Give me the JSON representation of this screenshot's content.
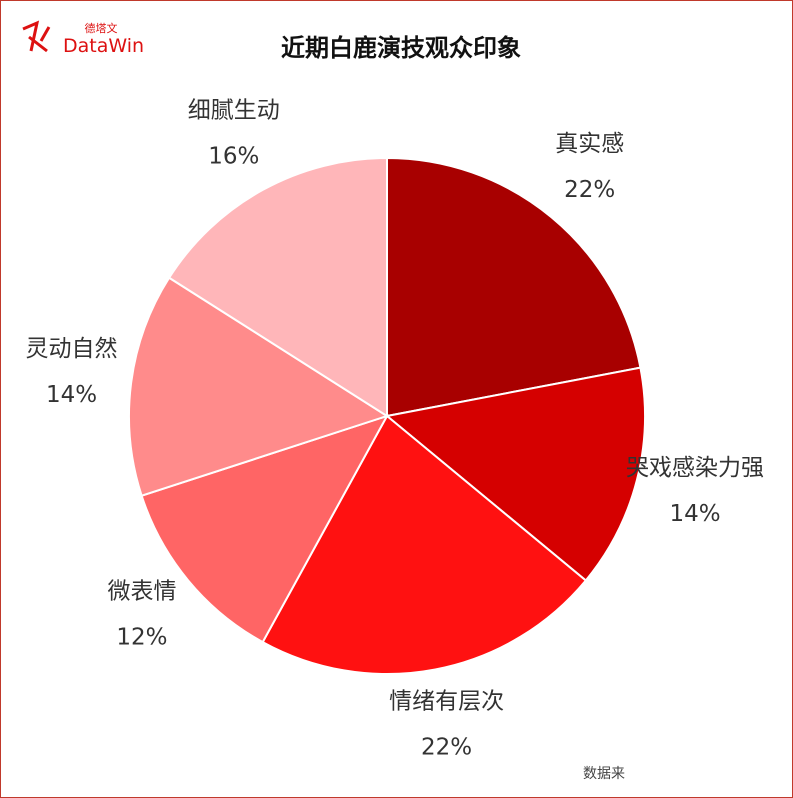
{
  "logo": {
    "brand": "DataWin",
    "brand_cn": "德塔文"
  },
  "footer": "数据来",
  "chart_data": {
    "type": "pie",
    "title": "近期白鹿演技观众印象",
    "categories": [
      "真实感",
      "哭戏感染力强",
      "情绪有层次",
      "微表情",
      "灵动自然",
      "细腻生动"
    ],
    "values": [
      22,
      14,
      22,
      12,
      14,
      16
    ],
    "value_labels": [
      "22%",
      "14%",
      "22%",
      "12%",
      "14%",
      "16%"
    ],
    "colors": [
      "#a80000",
      "#d50000",
      "#ff1111",
      "#ff6565",
      "#ff8b8b",
      "#ffb6b9"
    ]
  }
}
